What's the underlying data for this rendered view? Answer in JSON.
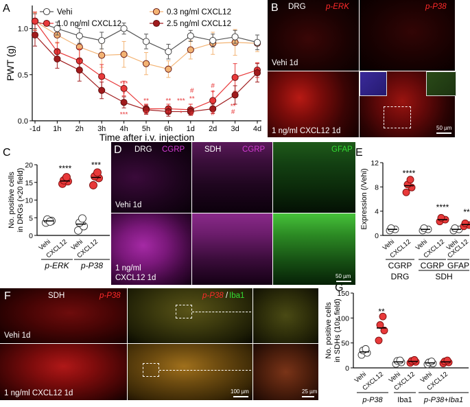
{
  "colors": {
    "vehi": "#ffffff",
    "c03": "#f3b373",
    "c10": "#e8393a",
    "c25": "#a01b1d",
    "stats": "#e8393a"
  },
  "letters": {
    "A": "A",
    "B": "B",
    "C": "C",
    "D": "D",
    "E": "E",
    "F": "F",
    "G": "G"
  },
  "chart_data": [
    {
      "panel": "A",
      "type": "line",
      "categories": [
        "-1d",
        "1h",
        "2h",
        "3h",
        "4h",
        "5h",
        "6h",
        "1d",
        "2d",
        "3d",
        "4d"
      ],
      "xlabel": "Time after i.v. injection",
      "ylabel": "PWT (g)",
      "ylim": [
        0,
        1.25
      ],
      "yticks": [
        "0.0",
        "0.5",
        "1.0"
      ],
      "series": [
        {
          "name": "Vehi",
          "values": [
            1.08,
            1.0,
            0.92,
            0.87,
            1.0,
            0.86,
            0.75,
            0.92,
            0.87,
            0.91,
            0.85
          ],
          "errors": [
            0.08,
            0.07,
            0.08,
            0.09,
            0.06,
            0.08,
            0.08,
            0.06,
            0.07,
            0.07,
            0.08
          ]
        },
        {
          "name": "0.3 ng/ml CXCL12",
          "values": [
            1.08,
            0.93,
            0.8,
            0.71,
            0.72,
            0.62,
            0.56,
            0.77,
            0.84,
            0.85,
            0.84
          ],
          "errors": [
            0.09,
            0.09,
            0.12,
            0.13,
            0.14,
            0.12,
            0.09,
            0.1,
            0.12,
            0.14,
            0.09
          ]
        },
        {
          "name": "1.0 ng/ml CXCL12",
          "values": [
            1.08,
            0.75,
            0.65,
            0.48,
            0.35,
            0.13,
            0.13,
            0.12,
            0.22,
            0.47,
            0.55
          ],
          "errors": [
            0.1,
            0.1,
            0.13,
            0.13,
            0.08,
            0.05,
            0.05,
            0.06,
            0.1,
            0.15,
            0.08
          ]
        },
        {
          "name": "2.5 ng/ml CXCL12",
          "values": [
            0.93,
            0.67,
            0.55,
            0.33,
            0.2,
            0.12,
            0.1,
            0.1,
            0.13,
            0.28,
            0.52
          ],
          "errors": [
            0.12,
            0.1,
            0.12,
            0.09,
            0.06,
            0.05,
            0.05,
            0.04,
            0.05,
            0.1,
            0.1
          ]
        }
      ],
      "annotations": [
        {
          "x": "4h",
          "texts": [
            "***",
            "*",
            "***"
          ]
        },
        {
          "x": "5h",
          "texts": [
            "**",
            "**"
          ]
        },
        {
          "x": "6h",
          "texts": [
            "**",
            "**"
          ]
        },
        {
          "x": "1d",
          "texts": [
            "#",
            "**",
            "#"
          ]
        },
        {
          "x": "1d_b",
          "texts": [
            "***",
            "*"
          ]
        },
        {
          "x": "2d",
          "texts": [
            "#",
            "*",
            "**",
            "#"
          ]
        },
        {
          "x": "3d",
          "texts": [
            "**",
            "#"
          ]
        }
      ]
    },
    {
      "panel": "C",
      "type": "scatter",
      "ylabel": [
        "No. positive cells",
        "in DRGs (×20 field)"
      ],
      "ylim": [
        0,
        20
      ],
      "yticks": [
        "0",
        "5",
        "10",
        "15",
        "20"
      ],
      "groups": [
        {
          "label": "Vehi",
          "mean": 4.1,
          "points": [
            3.6,
            4.1,
            4.5,
            3.9
          ]
        },
        {
          "label": "CXCL12",
          "mean": 15.4,
          "points": [
            14.6,
            15.3,
            15.6,
            16.5
          ]
        },
        {
          "label": "Vehi",
          "mean": 3.2,
          "points": [
            1.4,
            2.6,
            3.6,
            4.8
          ]
        },
        {
          "label": "CXCL12",
          "mean": 16.4,
          "points": [
            14.2,
            16.2,
            16.7,
            17.8
          ]
        }
      ],
      "group_labels": [
        "p-ERK",
        "p-P38"
      ],
      "stars": [
        "****",
        "***"
      ]
    },
    {
      "panel": "E",
      "type": "scatter",
      "ylabel": "Expression (/Vehi)",
      "ylim": [
        0,
        12
      ],
      "yticks": [
        "0",
        "4",
        "8",
        "12"
      ],
      "groups": [
        {
          "label": "Vehi",
          "mean": 1.0,
          "points": [
            0.8,
            1.0,
            1.2
          ]
        },
        {
          "label": "CXCL12",
          "mean": 8.2,
          "points": [
            7.1,
            7.9,
            8.4,
            9.2
          ]
        },
        {
          "label": "Vehi",
          "mean": 1.0,
          "points": [
            0.8,
            1.0,
            1.2
          ]
        },
        {
          "label": "CXCL12",
          "mean": 2.6,
          "points": [
            2.3,
            2.6,
            2.9
          ]
        },
        {
          "label": "Vehi",
          "mean": 1.0,
          "points": [
            0.8,
            1.0,
            1.2
          ]
        },
        {
          "label": "CXCL12",
          "mean": 1.8,
          "points": [
            1.5,
            1.7,
            2.0
          ]
        }
      ],
      "group_labels": [
        "CGRP",
        "CGRP",
        "GFAP"
      ],
      "sub_labels": [
        "DRG",
        "SDH"
      ],
      "stars": [
        "****",
        "****",
        "**"
      ]
    },
    {
      "panel": "G",
      "type": "scatter",
      "ylabel": [
        "No. positive cells",
        "in SDHs (10× field)"
      ],
      "ylim": [
        0,
        150
      ],
      "yticks": [
        "0",
        "50",
        "100",
        "150"
      ],
      "groups": [
        {
          "label": "Vehi",
          "mean": 32,
          "points": [
            26,
            30,
            35,
            38
          ]
        },
        {
          "label": "CXCL12",
          "mean": 80,
          "points": [
            55,
            75,
            86,
            103
          ]
        },
        {
          "label": "Vehi",
          "mean": 12,
          "points": [
            8,
            11,
            14,
            15
          ]
        },
        {
          "label": "CXCL12",
          "mean": 13,
          "points": [
            10,
            12,
            14,
            16
          ]
        },
        {
          "label": "Vehi",
          "mean": 10,
          "points": [
            7,
            9,
            11,
            13
          ]
        },
        {
          "label": "CXCL12",
          "mean": 12,
          "points": [
            9,
            11,
            13,
            15
          ]
        }
      ],
      "group_labels": [
        "p-P38",
        "Iba1",
        "p-P38+Iba1"
      ],
      "stars": [
        "**"
      ]
    }
  ],
  "images": {
    "B": {
      "top_left": "DRG",
      "top_right_a": "p-ERK",
      "top_right_b": "p-P38",
      "row1": "Vehi 1d",
      "row2": "1 ng/ml CXCL12 1d",
      "scale": "50 µm"
    },
    "D": {
      "col1a": "DRG",
      "col1b": "CGRP",
      "col2a": "SDH",
      "col2b": "CGRP",
      "col3": "GFAP",
      "row1": "Vehi 1d",
      "row2a": "1 ng/ml",
      "row2b": "CXCL12 1d",
      "scale": "50 µm"
    },
    "F": {
      "col1a": "SDH",
      "col1b": "p-P38",
      "col2a": "p-P38",
      "col2b": "/",
      "col2c": "Iba1",
      "row1": "Vehi 1d",
      "row2": "1 ng/ml CXCL12 1d",
      "scale1": "100 µm",
      "scale2": "25 µm"
    }
  }
}
